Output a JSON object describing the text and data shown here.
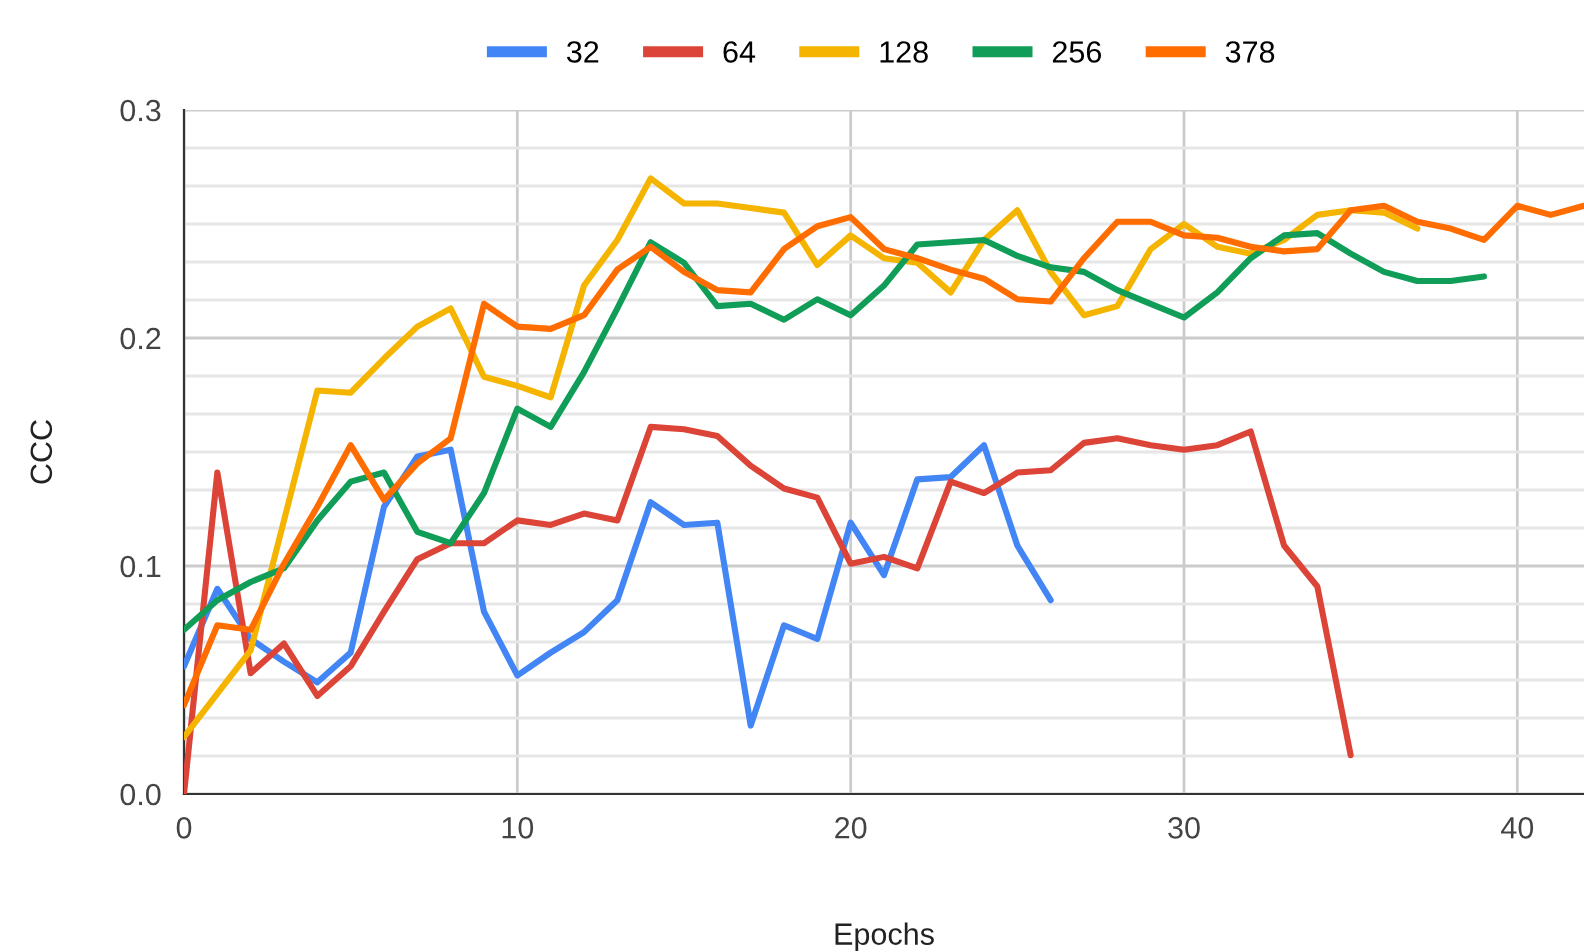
{
  "chart_data": {
    "type": "line",
    "xlabel": "Epochs",
    "ylabel": "CCC",
    "xlim": [
      0,
      42
    ],
    "xticks": [
      0,
      10,
      20,
      30,
      40
    ],
    "ylim": [
      0,
      0.3
    ],
    "yticks": [
      {
        "value": 0,
        "label": "0.0"
      },
      0.1,
      0.2,
      0.3
    ],
    "grid": true,
    "legend": "top",
    "marker": "none",
    "line_style": "solid",
    "series": [
      {
        "name": "32",
        "color": "#4285f4",
        "x": [
          0,
          1,
          2,
          3,
          4,
          5,
          6,
          7,
          8,
          9,
          10,
          11,
          12,
          13,
          14,
          15,
          16,
          17,
          18,
          19,
          20,
          21,
          22,
          23,
          24,
          25,
          26
        ],
        "values": [
          0.056,
          0.09,
          0.068,
          0.058,
          0.049,
          0.062,
          0.126,
          0.148,
          0.151,
          0.08,
          0.052,
          0.062,
          0.071,
          0.085,
          0.128,
          0.118,
          0.119,
          0.03,
          0.074,
          0.068,
          0.119,
          0.096,
          0.138,
          0.139,
          0.153,
          0.109,
          0.085
        ]
      },
      {
        "name": "64",
        "color": "#db4437",
        "x": [
          0,
          1,
          2,
          3,
          4,
          5,
          6,
          7,
          8,
          9,
          10,
          11,
          12,
          13,
          14,
          15,
          16,
          17,
          18,
          19,
          20,
          21,
          22,
          23,
          24,
          25,
          26,
          27,
          28,
          29,
          30,
          31,
          32,
          33,
          34,
          35
        ],
        "values": [
          0.0,
          0.141,
          0.053,
          0.066,
          0.043,
          0.056,
          0.08,
          0.103,
          0.11,
          0.11,
          0.12,
          0.118,
          0.123,
          0.12,
          0.161,
          0.16,
          0.157,
          0.144,
          0.134,
          0.13,
          0.101,
          0.104,
          0.099,
          0.137,
          0.132,
          0.141,
          0.142,
          0.154,
          0.156,
          0.153,
          0.151,
          0.153,
          0.159,
          0.109,
          0.091,
          0.017
        ]
      },
      {
        "name": "128",
        "color": "#f4b400",
        "x": [
          0,
          1,
          2,
          3,
          4,
          5,
          6,
          7,
          8,
          9,
          10,
          11,
          12,
          13,
          14,
          15,
          16,
          17,
          18,
          19,
          20,
          21,
          22,
          23,
          24,
          25,
          26,
          27,
          28,
          29,
          30,
          31,
          32,
          33,
          34,
          35,
          36,
          37
        ],
        "values": [
          0.025,
          0.044,
          0.063,
          0.12,
          0.177,
          0.176,
          0.191,
          0.205,
          0.213,
          0.183,
          0.179,
          0.174,
          0.223,
          0.243,
          0.27,
          0.259,
          0.259,
          0.257,
          0.255,
          0.232,
          0.245,
          0.235,
          0.233,
          0.22,
          0.243,
          0.256,
          0.229,
          0.21,
          0.214,
          0.239,
          0.25,
          0.24,
          0.237,
          0.243,
          0.254,
          0.256,
          0.255,
          0.248
        ]
      },
      {
        "name": "256",
        "color": "#0f9d58",
        "x": [
          0,
          1,
          2,
          3,
          4,
          5,
          6,
          7,
          8,
          9,
          10,
          11,
          12,
          13,
          14,
          15,
          16,
          17,
          18,
          19,
          20,
          21,
          22,
          23,
          24,
          25,
          26,
          27,
          28,
          29,
          30,
          31,
          32,
          33,
          34,
          35,
          36,
          37,
          38,
          39
        ],
        "values": [
          0.072,
          0.085,
          0.093,
          0.099,
          0.12,
          0.137,
          0.141,
          0.115,
          0.11,
          0.132,
          0.169,
          0.161,
          0.185,
          0.213,
          0.242,
          0.233,
          0.214,
          0.215,
          0.208,
          0.217,
          0.21,
          0.223,
          0.241,
          0.242,
          0.243,
          0.236,
          0.231,
          0.229,
          0.221,
          0.215,
          0.209,
          0.22,
          0.235,
          0.245,
          0.246,
          0.237,
          0.229,
          0.225,
          0.225,
          0.227
        ]
      },
      {
        "name": "378",
        "color": "#ff6d01",
        "x": [
          0,
          1,
          2,
          3,
          4,
          5,
          6,
          7,
          8,
          9,
          10,
          11,
          12,
          13,
          14,
          15,
          16,
          17,
          18,
          19,
          20,
          21,
          22,
          23,
          24,
          25,
          26,
          27,
          28,
          29,
          30,
          31,
          32,
          33,
          34,
          35,
          36,
          37,
          38,
          39,
          40,
          41,
          42
        ],
        "values": [
          0.039,
          0.074,
          0.072,
          0.101,
          0.126,
          0.153,
          0.129,
          0.145,
          0.156,
          0.215,
          0.205,
          0.204,
          0.21,
          0.23,
          0.24,
          0.229,
          0.221,
          0.22,
          0.239,
          0.249,
          0.253,
          0.239,
          0.235,
          0.23,
          0.226,
          0.217,
          0.216,
          0.235,
          0.251,
          0.251,
          0.245,
          0.244,
          0.24,
          0.238,
          0.239,
          0.256,
          0.258,
          0.251,
          0.248,
          0.243,
          0.258,
          0.254,
          0.258
        ]
      }
    ]
  }
}
